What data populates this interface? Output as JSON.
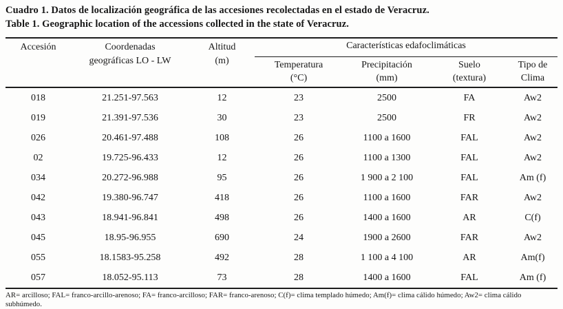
{
  "caption": {
    "spanish": "Cuadro 1. Datos de localización geográfica de las accesiones recolectadas en el estado de Veracruz.",
    "english": "Table 1. Geographic location of the accessions collected in the state of Veracruz."
  },
  "table": {
    "columns": [
      {
        "line1": "Accesión",
        "line2": ""
      },
      {
        "line1": "Coordenadas",
        "line2": "geográficas LO - LW"
      },
      {
        "line1": "Altitud",
        "line2": "(m)"
      }
    ],
    "group_header": "Características edafoclimáticas",
    "subcolumns": [
      {
        "line1": "Temperatura",
        "line2": "(°C)"
      },
      {
        "line1": "Precipitación",
        "line2": "(mm)"
      },
      {
        "line1": "Suelo",
        "line2": "(textura)"
      },
      {
        "line1": "Tipo de",
        "line2": "Clima"
      }
    ],
    "rows": [
      [
        "018",
        "21.251-97.563",
        "12",
        "23",
        "2500",
        "FA",
        "Aw2"
      ],
      [
        "019",
        "21.391-97.536",
        "30",
        "23",
        "2500",
        "FR",
        "Aw2"
      ],
      [
        "026",
        "20.461-97.488",
        "108",
        "26",
        "1100 a 1600",
        "FAL",
        "Aw2"
      ],
      [
        "02",
        "19.725-96.433",
        "12",
        "26",
        "1100 a 1300",
        "FAL",
        "Aw2"
      ],
      [
        "034",
        "20.272-96.988",
        "95",
        "26",
        "1 900 a 2 100",
        "FAL",
        "Am (f)"
      ],
      [
        "042",
        "19.380-96.747",
        "418",
        "26",
        "1100 a 1600",
        "FAR",
        "Aw2"
      ],
      [
        "043",
        "18.941-96.841",
        "498",
        "26",
        "1400 a 1600",
        "AR",
        "C(f)"
      ],
      [
        "045",
        "18.95-96.955",
        "690",
        "24",
        "1900 a 2600",
        "FAR",
        "Aw2"
      ],
      [
        "055",
        "18.1583-95.258",
        "492",
        "28",
        "1 100 a 4 100",
        "AR",
        "Am(f)"
      ],
      [
        "057",
        "18.052-95.113",
        "73",
        "28",
        "1400 a 1600",
        "FAL",
        "Am (f)"
      ]
    ]
  },
  "footnote": "AR= arcilloso; FAL= franco-arcillo-arenoso; FA= franco-arcilloso; FAR= franco-arenoso; C(f)= clima templado húmedo; Am(f)= clima cálido húmedo; Aw2= clima cálido subhúmedo."
}
